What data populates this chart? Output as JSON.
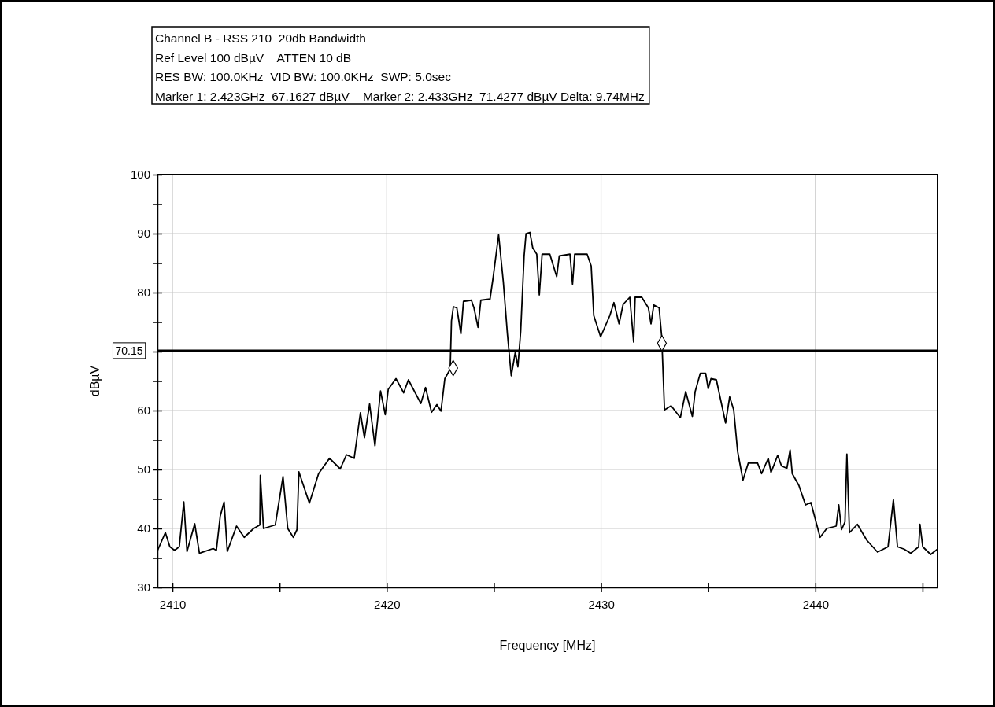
{
  "chart_data": {
    "type": "line",
    "title": "Channel B - RSS 210  20db Bandwidth",
    "annotations": [
      "Ref Level 100 dBµV    ATTEN 10 dB",
      "RES BW: 100.0KHz  VID BW: 100.0KHz  SWP: 5.0sec",
      "Marker 1: 2.423GHz  67.1627 dBµV    Marker 2: 2.433GHz  71.4277 dBµV Delta: 9.74MHz"
    ],
    "xlabel": "Frequency [MHz]",
    "ylabel": "dBµV",
    "xlim": [
      2409.3,
      2445.7
    ],
    "xticks": [
      2410,
      {
        "value": 2415,
        "label": null
      },
      2420,
      {
        "value": 2425,
        "label": null
      },
      2430,
      {
        "value": 2435,
        "label": null
      },
      2440,
      {
        "value": 2445,
        "label": null
      }
    ],
    "ylim": [
      30,
      100
    ],
    "yticks": [
      30,
      {
        "value": 35,
        "label": null
      },
      40,
      {
        "value": 45,
        "label": null
      },
      50,
      {
        "value": 55,
        "label": null
      },
      60,
      {
        "value": 65,
        "label": null
      },
      {
        "value": 70,
        "label": null
      },
      {
        "value": 75,
        "label": null
      },
      80,
      {
        "value": 85,
        "label": null
      },
      90,
      {
        "value": 95,
        "label": null
      },
      100
    ],
    "grid": true,
    "line_style": "solid",
    "ref_lines": [
      {
        "axis": "y",
        "value": 70.15,
        "label": "70.15",
        "color": "#000000"
      }
    ],
    "series": [
      {
        "color": "#000000",
        "marker": "none",
        "x": [
          2409.31,
          2409.67,
          2409.88,
          2410.1,
          2410.32,
          2410.53,
          2410.68,
          2411.04,
          2411.26,
          2411.9,
          2412.05,
          2412.23,
          2412.41,
          2412.56,
          2412.99,
          2413.35,
          2413.79,
          2414.08,
          2414.1,
          2414.25,
          2414.8,
          2415.16,
          2415.38,
          2415.64,
          2415.81,
          2415.9,
          2416.39,
          2416.82,
          2417.33,
          2417.83,
          2418.12,
          2418.48,
          2418.77,
          2418.96,
          2419.2,
          2419.45,
          2419.71,
          2419.93,
          2420.07,
          2420.43,
          2420.79,
          2421.01,
          2421.59,
          2421.81,
          2422.09,
          2422.34,
          2422.53,
          2422.71,
          2422.96,
          2423.02,
          2423.11,
          2423.27,
          2423.46,
          2423.58,
          2423.95,
          2424.07,
          2424.26,
          2424.39,
          2424.82,
          2424.97,
          2425.22,
          2425.44,
          2425.63,
          2425.81,
          2426.0,
          2426.12,
          2426.25,
          2426.41,
          2426.5,
          2426.68,
          2426.81,
          2427.0,
          2427.12,
          2427.25,
          2427.61,
          2427.93,
          2428.05,
          2428.55,
          2428.67,
          2428.77,
          2429.35,
          2429.54,
          2429.66,
          2429.98,
          2430.41,
          2430.6,
          2430.84,
          2431.03,
          2431.34,
          2431.52,
          2431.59,
          2431.9,
          2432.21,
          2432.33,
          2432.46,
          2432.71,
          2432.83,
          2432.96,
          2433.27,
          2433.7,
          2433.95,
          2434.26,
          2434.39,
          2434.63,
          2434.88,
          2435.0,
          2435.13,
          2435.38,
          2435.81,
          2436.0,
          2436.19,
          2436.37,
          2436.62,
          2436.87,
          2437.3,
          2437.49,
          2437.8,
          2437.93,
          2438.24,
          2438.42,
          2438.67,
          2438.82,
          2438.92,
          2439.23,
          2439.54,
          2439.79,
          2440.22,
          2440.53,
          2440.97,
          2441.09,
          2441.22,
          2441.38,
          2441.47,
          2441.59,
          2441.96,
          2442.4,
          2442.9,
          2443.39,
          2443.64,
          2443.83,
          2444.14,
          2444.45,
          2444.82,
          2444.88,
          2445.01,
          2445.38,
          2445.7
        ],
        "values": [
          36.3,
          39.3,
          36.9,
          36.3,
          36.9,
          44.5,
          36.1,
          40.8,
          35.8,
          36.6,
          36.3,
          42.1,
          44.5,
          36.1,
          40.4,
          38.5,
          40.0,
          40.6,
          49.0,
          40.0,
          40.6,
          48.8,
          40.0,
          38.5,
          39.8,
          49.6,
          44.3,
          49.3,
          51.9,
          50.1,
          52.5,
          51.9,
          59.6,
          55.4,
          61.1,
          54.0,
          63.3,
          59.3,
          63.6,
          65.4,
          63.0,
          65.2,
          61.2,
          63.9,
          59.7,
          61.0,
          59.9,
          65.4,
          67.0,
          75.2,
          77.6,
          77.4,
          73.0,
          78.5,
          78.7,
          77.4,
          74.1,
          78.7,
          78.9,
          82.7,
          89.8,
          81.8,
          73.0,
          65.9,
          69.9,
          67.4,
          73.4,
          86.2,
          90.0,
          90.2,
          87.6,
          86.5,
          79.6,
          86.5,
          86.5,
          82.7,
          86.2,
          86.5,
          81.4,
          86.5,
          86.5,
          84.5,
          76.1,
          72.5,
          76.1,
          78.3,
          74.7,
          78.0,
          79.2,
          71.6,
          79.2,
          79.2,
          77.4,
          74.7,
          77.9,
          77.4,
          72.5,
          60.1,
          60.8,
          58.8,
          63.2,
          59.0,
          63.2,
          66.3,
          66.3,
          63.7,
          65.4,
          65.2,
          57.9,
          62.3,
          60.1,
          53.1,
          48.2,
          51.1,
          51.1,
          49.3,
          51.9,
          49.5,
          52.4,
          50.6,
          50.2,
          53.3,
          49.3,
          47.3,
          44.0,
          44.4,
          38.5,
          40.0,
          40.4,
          44.0,
          39.8,
          41.1,
          52.6,
          39.3,
          40.7,
          38.0,
          36.0,
          36.9,
          44.9,
          36.9,
          36.5,
          35.8,
          36.9,
          40.7,
          36.9,
          35.6,
          36.5
        ]
      },
      {
        "type": "scatter",
        "color": "#000000",
        "marker": "diamond",
        "x": [
          2423.1,
          2432.84
        ],
        "values": [
          67.2,
          71.4
        ]
      }
    ]
  }
}
